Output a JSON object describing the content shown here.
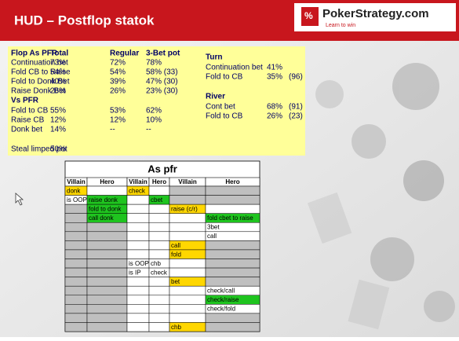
{
  "header": {
    "title": "HUD – Postflop statok",
    "logo": "PokerStrategy.com",
    "tagline": "Learn to win"
  },
  "stats": {
    "flop_as_pfr": {
      "headers": [
        "Flop As PFR",
        "Total",
        "Regular",
        "3-Bet pot"
      ],
      "rows": [
        [
          "Continuation bet",
          "73%",
          "72%",
          "78%"
        ],
        [
          "Fold CB to Raise",
          "54%",
          "54%",
          "58% (33)"
        ],
        [
          "Fold to Donk Bet",
          "40%",
          "39%",
          "47% (30)"
        ],
        [
          "Raise Donk Bet",
          "26%",
          "26%",
          "23% (30)"
        ]
      ]
    },
    "vs_pfr": {
      "title": "Vs PFR",
      "rows": [
        [
          "Fold to CB",
          "55%",
          "53%",
          "62%"
        ],
        [
          "Raise CB",
          "12%",
          "12%",
          "10%"
        ],
        [
          "Donk bet",
          "14%",
          "--",
          "--"
        ]
      ]
    },
    "steal": [
      "Steal limped pot",
      "50%"
    ],
    "turn": {
      "title": "Turn",
      "rows": [
        [
          "Continuation bet",
          "41%"
        ],
        [
          "Fold to CB",
          "35%",
          "(96)"
        ]
      ]
    },
    "river": {
      "title": "River",
      "rows": [
        [
          "Cont bet",
          "68%",
          "(91)"
        ],
        [
          "Fold to CB",
          "26%",
          "(23)"
        ]
      ]
    }
  },
  "table": {
    "title": "As pfr",
    "headers": [
      "Villain",
      "Hero",
      "Villain",
      "Hero",
      "Villain",
      "Hero"
    ],
    "rows": [
      [
        "donk",
        null,
        "check",
        null,
        null,
        null
      ],
      [
        "is OOP",
        "raise donk",
        null,
        "cbet",
        null,
        null
      ],
      [
        null,
        "fold to donk",
        null,
        null,
        "raise (c/r)",
        null
      ],
      [
        null,
        "call donk",
        null,
        null,
        null,
        "fold cbet to raise"
      ],
      [
        null,
        null,
        null,
        null,
        null,
        "3bet"
      ],
      [
        null,
        null,
        null,
        null,
        null,
        "call"
      ],
      [
        null,
        null,
        null,
        null,
        "call",
        null
      ],
      [
        null,
        null,
        null,
        null,
        "fold",
        null
      ],
      [
        null,
        null,
        "is OOP",
        "chb",
        null,
        null
      ],
      [
        null,
        null,
        "is IP",
        "check",
        null,
        null
      ],
      [
        null,
        null,
        null,
        null,
        "bet",
        null
      ],
      [
        null,
        null,
        null,
        null,
        null,
        "check/call"
      ],
      [
        null,
        null,
        null,
        null,
        null,
        "check/raise"
      ],
      [
        null,
        null,
        null,
        null,
        null,
        "check/fold"
      ],
      [
        null,
        null,
        null,
        null,
        null,
        null
      ],
      [
        null,
        null,
        null,
        null,
        "chb",
        null
      ]
    ]
  }
}
